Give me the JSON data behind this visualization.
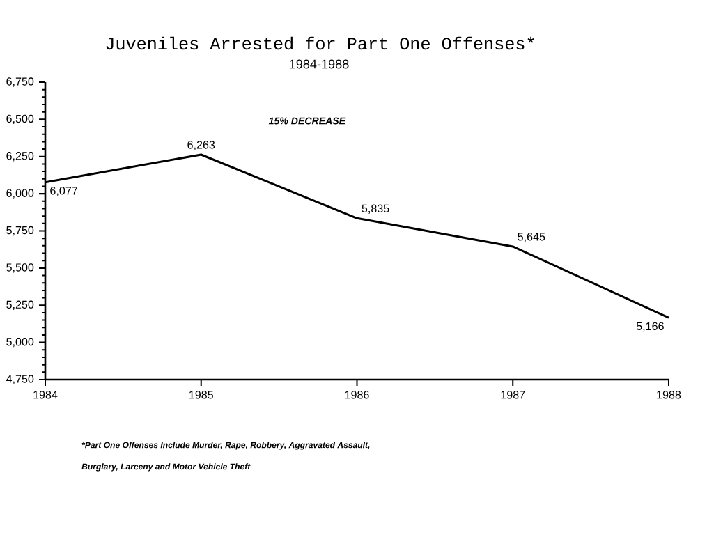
{
  "chart_data": {
    "type": "line",
    "title": "Juveniles Arrested for Part One Offenses*",
    "subtitle": "1984-1988",
    "x": [
      1984,
      1985,
      1986,
      1987,
      1988
    ],
    "series": [
      {
        "color": "#000000",
        "values": [
          6077,
          6263,
          5835,
          5645,
          5166
        ],
        "value_labels": [
          "6,077",
          "6,263",
          "5,835",
          "5,645",
          "5,166"
        ]
      }
    ],
    "xlim": [
      1984,
      1988
    ],
    "xticks": [
      1984,
      1985,
      1986,
      1987,
      1988
    ],
    "ylim": [
      4750,
      6750
    ],
    "yticks": [
      {
        "value": 4750,
        "label": "4,750"
      },
      {
        "value": 5000,
        "label": "5,000"
      },
      {
        "value": 5250,
        "label": "5,250"
      },
      {
        "value": 5500,
        "label": "5,500"
      },
      {
        "value": 5750,
        "label": "5,750"
      },
      {
        "value": 6000,
        "label": "6,000"
      },
      {
        "value": 6250,
        "label": "6,250"
      },
      {
        "value": 6500,
        "label": "6,500"
      },
      {
        "value": 6750,
        "label": "6,750"
      }
    ],
    "annotations": [
      "15% DECREASE",
      "*Part One Offenses Include  Murder, Rape, Robbery, Aggravated Assault,",
      "Burglary, Larceny and Motor Vehicle Theft"
    ],
    "grid": false,
    "marker": "none",
    "line_style": "solid"
  }
}
